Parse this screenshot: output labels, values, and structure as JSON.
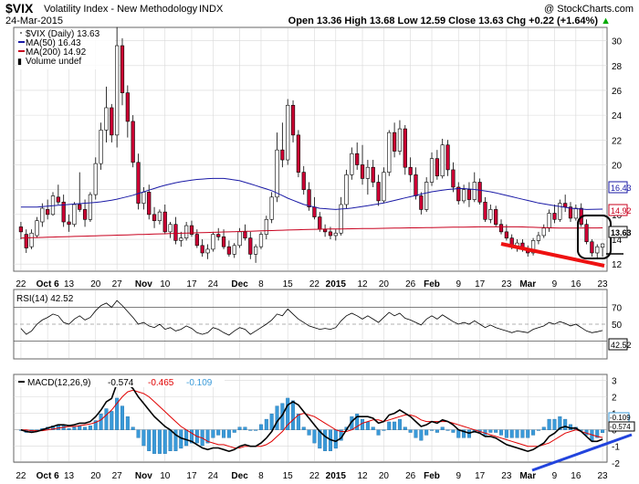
{
  "header": {
    "symbol": "$VIX",
    "description": "Volatility Index - New Methodology",
    "exchange": "INDX",
    "watermark": "@ StockCharts.com",
    "date": "24-Mar-2015",
    "ohlc": "Open 13.36  High 13.68  Low 12.59  Close 13.63  Chg +0.22 (+1.64%)",
    "chg_symbol": "▲"
  },
  "legend": {
    "price": "$VIX (Daily) 13.63",
    "ma50": "MA(50) 16.43",
    "ma200": "MA(200) 14.92",
    "volume": "Volume undef"
  },
  "rsi_title": "RSI(14) 42.52",
  "macd_title": {
    "label": "MACD(12,26,9)",
    "v1": "-0.574",
    "v2": "-0.465",
    "v3": "-0.109"
  },
  "colors": {
    "up": "#ffffff",
    "down": "#cc0033",
    "ma50": "#1a1aa6",
    "ma200": "#c8001e",
    "macd": "#000000",
    "signal": "#e00000",
    "hist": "#3a9ad9",
    "trend_red": "#ee1111",
    "trend_blue": "#2244dd"
  },
  "chart_data": {
    "type": "candlestick",
    "price_axis": {
      "min": 11.5,
      "max": 31,
      "ticks": [
        12,
        14,
        16,
        18,
        20,
        22,
        24,
        26,
        28,
        30
      ]
    },
    "month_labels": [
      "22",
      "Oct 6",
      "13",
      "20",
      "27",
      "Nov",
      "10",
      "17",
      "24",
      "Dec",
      "8",
      "15",
      "22",
      "2015",
      "12",
      "20",
      "26",
      "Feb",
      "9",
      "17",
      "23",
      "Mar",
      "9",
      "16",
      "23"
    ],
    "candles": [
      {
        "o": 15.0,
        "h": 15.4,
        "l": 14.0,
        "c": 14.6
      },
      {
        "o": 14.4,
        "h": 14.8,
        "l": 12.9,
        "c": 13.3
      },
      {
        "o": 13.4,
        "h": 14.8,
        "l": 13.2,
        "c": 14.5
      },
      {
        "o": 14.3,
        "h": 15.8,
        "l": 14.1,
        "c": 15.5
      },
      {
        "o": 15.4,
        "h": 16.9,
        "l": 15.0,
        "c": 16.5
      },
      {
        "o": 16.4,
        "h": 17.2,
        "l": 15.6,
        "c": 16.0
      },
      {
        "o": 16.0,
        "h": 17.8,
        "l": 15.9,
        "c": 17.5
      },
      {
        "o": 17.4,
        "h": 18.4,
        "l": 16.8,
        "c": 17.0
      },
      {
        "o": 17.0,
        "h": 17.6,
        "l": 15.0,
        "c": 15.4
      },
      {
        "o": 15.4,
        "h": 16.0,
        "l": 14.6,
        "c": 15.2
      },
      {
        "o": 15.2,
        "h": 17.0,
        "l": 15.0,
        "c": 16.8
      },
      {
        "o": 16.8,
        "h": 19.4,
        "l": 16.2,
        "c": 16.4
      },
      {
        "o": 16.4,
        "h": 17.2,
        "l": 15.0,
        "c": 15.6
      },
      {
        "o": 15.6,
        "h": 17.8,
        "l": 15.4,
        "c": 17.6
      },
      {
        "o": 17.6,
        "h": 20.6,
        "l": 17.2,
        "c": 20.1
      },
      {
        "o": 20.1,
        "h": 23.4,
        "l": 19.6,
        "c": 22.8
      },
      {
        "o": 22.8,
        "h": 26.3,
        "l": 21.8,
        "c": 24.6
      },
      {
        "o": 24.6,
        "h": 24.9,
        "l": 21.8,
        "c": 22.4
      },
      {
        "o": 22.4,
        "h": 31.1,
        "l": 21.4,
        "c": 29.6
      },
      {
        "o": 29.6,
        "h": 30.2,
        "l": 24.8,
        "c": 25.8
      },
      {
        "o": 25.8,
        "h": 26.4,
        "l": 22.2,
        "c": 23.5
      },
      {
        "o": 23.5,
        "h": 24.0,
        "l": 19.8,
        "c": 20.2
      },
      {
        "o": 20.2,
        "h": 20.9,
        "l": 16.4,
        "c": 16.9
      },
      {
        "o": 16.9,
        "h": 18.2,
        "l": 16.4,
        "c": 17.8
      },
      {
        "o": 17.8,
        "h": 18.4,
        "l": 15.6,
        "c": 16.0
      },
      {
        "o": 16.0,
        "h": 16.6,
        "l": 14.9,
        "c": 15.5
      },
      {
        "o": 15.5,
        "h": 16.4,
        "l": 15.2,
        "c": 16.2
      },
      {
        "o": 16.2,
        "h": 16.8,
        "l": 14.4,
        "c": 14.6
      },
      {
        "o": 14.6,
        "h": 15.4,
        "l": 14.1,
        "c": 15.2
      },
      {
        "o": 15.2,
        "h": 15.8,
        "l": 13.6,
        "c": 13.9
      },
      {
        "o": 13.9,
        "h": 14.6,
        "l": 13.4,
        "c": 14.1
      },
      {
        "o": 14.1,
        "h": 15.4,
        "l": 13.9,
        "c": 15.1
      },
      {
        "o": 15.1,
        "h": 15.5,
        "l": 14.2,
        "c": 14.4
      },
      {
        "o": 14.4,
        "h": 14.8,
        "l": 13.3,
        "c": 13.5
      },
      {
        "o": 13.5,
        "h": 14.0,
        "l": 12.6,
        "c": 12.9
      },
      {
        "o": 12.9,
        "h": 13.6,
        "l": 12.4,
        "c": 13.2
      },
      {
        "o": 13.2,
        "h": 14.6,
        "l": 13.0,
        "c": 14.4
      },
      {
        "o": 14.4,
        "h": 14.9,
        "l": 13.9,
        "c": 14.2
      },
      {
        "o": 14.2,
        "h": 14.8,
        "l": 13.2,
        "c": 13.4
      },
      {
        "o": 13.4,
        "h": 13.9,
        "l": 12.6,
        "c": 12.8
      },
      {
        "o": 12.8,
        "h": 13.7,
        "l": 12.5,
        "c": 13.5
      },
      {
        "o": 13.5,
        "h": 14.9,
        "l": 13.3,
        "c": 14.6
      },
      {
        "o": 14.6,
        "h": 15.2,
        "l": 13.9,
        "c": 14.1
      },
      {
        "o": 14.1,
        "h": 14.6,
        "l": 12.4,
        "c": 12.8
      },
      {
        "o": 12.8,
        "h": 13.6,
        "l": 12.1,
        "c": 13.4
      },
      {
        "o": 13.4,
        "h": 14.6,
        "l": 13.2,
        "c": 14.4
      },
      {
        "o": 14.4,
        "h": 15.9,
        "l": 14.0,
        "c": 15.6
      },
      {
        "o": 15.6,
        "h": 17.8,
        "l": 15.3,
        "c": 17.4
      },
      {
        "o": 17.4,
        "h": 22.6,
        "l": 17.0,
        "c": 21.2
      },
      {
        "o": 21.2,
        "h": 23.4,
        "l": 19.8,
        "c": 20.4
      },
      {
        "o": 20.4,
        "h": 25.3,
        "l": 20.0,
        "c": 24.8
      },
      {
        "o": 24.8,
        "h": 25.2,
        "l": 21.8,
        "c": 22.4
      },
      {
        "o": 22.4,
        "h": 22.8,
        "l": 19.0,
        "c": 19.4
      },
      {
        "o": 19.4,
        "h": 19.9,
        "l": 17.6,
        "c": 18.0
      },
      {
        "o": 18.0,
        "h": 18.6,
        "l": 16.3,
        "c": 16.6
      },
      {
        "o": 16.6,
        "h": 17.4,
        "l": 15.6,
        "c": 15.8
      },
      {
        "o": 15.8,
        "h": 16.2,
        "l": 14.6,
        "c": 14.8
      },
      {
        "o": 14.8,
        "h": 15.2,
        "l": 14.2,
        "c": 14.6
      },
      {
        "o": 14.6,
        "h": 15.0,
        "l": 14.0,
        "c": 14.3
      },
      {
        "o": 14.3,
        "h": 14.8,
        "l": 13.9,
        "c": 14.5
      },
      {
        "o": 14.5,
        "h": 17.4,
        "l": 14.3,
        "c": 16.8
      },
      {
        "o": 16.8,
        "h": 19.6,
        "l": 16.5,
        "c": 19.2
      },
      {
        "o": 19.2,
        "h": 21.4,
        "l": 18.8,
        "c": 20.9
      },
      {
        "o": 20.9,
        "h": 21.8,
        "l": 19.6,
        "c": 20.0
      },
      {
        "o": 20.0,
        "h": 21.6,
        "l": 18.4,
        "c": 18.9
      },
      {
        "o": 18.9,
        "h": 20.4,
        "l": 17.6,
        "c": 19.8
      },
      {
        "o": 19.8,
        "h": 20.4,
        "l": 18.2,
        "c": 18.6
      },
      {
        "o": 18.6,
        "h": 19.2,
        "l": 16.7,
        "c": 17.1
      },
      {
        "o": 17.1,
        "h": 19.8,
        "l": 16.9,
        "c": 19.4
      },
      {
        "o": 19.4,
        "h": 22.8,
        "l": 19.1,
        "c": 22.6
      },
      {
        "o": 22.6,
        "h": 23.4,
        "l": 20.6,
        "c": 21.1
      },
      {
        "o": 21.1,
        "h": 23.6,
        "l": 20.8,
        "c": 22.9
      },
      {
        "o": 22.9,
        "h": 23.2,
        "l": 19.2,
        "c": 19.8
      },
      {
        "o": 19.8,
        "h": 20.6,
        "l": 18.6,
        "c": 19.2
      },
      {
        "o": 19.2,
        "h": 19.8,
        "l": 17.2,
        "c": 17.5
      },
      {
        "o": 17.5,
        "h": 17.8,
        "l": 16.0,
        "c": 16.4
      },
      {
        "o": 16.4,
        "h": 19.0,
        "l": 16.2,
        "c": 18.6
      },
      {
        "o": 18.6,
        "h": 21.0,
        "l": 18.3,
        "c": 20.5
      },
      {
        "o": 20.5,
        "h": 21.2,
        "l": 18.8,
        "c": 19.1
      },
      {
        "o": 19.1,
        "h": 22.1,
        "l": 18.9,
        "c": 21.6
      },
      {
        "o": 21.6,
        "h": 22.0,
        "l": 19.1,
        "c": 19.6
      },
      {
        "o": 19.6,
        "h": 20.2,
        "l": 17.8,
        "c": 18.2
      },
      {
        "o": 18.2,
        "h": 18.6,
        "l": 16.8,
        "c": 17.1
      },
      {
        "o": 17.1,
        "h": 18.4,
        "l": 16.9,
        "c": 18.0
      },
      {
        "o": 18.0,
        "h": 18.6,
        "l": 16.6,
        "c": 17.2
      },
      {
        "o": 17.2,
        "h": 19.4,
        "l": 17.0,
        "c": 18.6
      },
      {
        "o": 18.6,
        "h": 18.9,
        "l": 16.8,
        "c": 17.0
      },
      {
        "o": 17.0,
        "h": 17.4,
        "l": 15.4,
        "c": 15.6
      },
      {
        "o": 15.6,
        "h": 16.8,
        "l": 15.3,
        "c": 16.4
      },
      {
        "o": 16.4,
        "h": 16.7,
        "l": 15.0,
        "c": 15.2
      },
      {
        "o": 15.2,
        "h": 15.6,
        "l": 14.4,
        "c": 14.6
      },
      {
        "o": 14.6,
        "h": 15.2,
        "l": 13.9,
        "c": 14.1
      },
      {
        "o": 14.1,
        "h": 14.4,
        "l": 13.2,
        "c": 13.4
      },
      {
        "o": 13.4,
        "h": 14.0,
        "l": 13.0,
        "c": 13.7
      },
      {
        "o": 13.7,
        "h": 14.0,
        "l": 13.0,
        "c": 13.2
      },
      {
        "o": 13.2,
        "h": 13.5,
        "l": 12.6,
        "c": 12.9
      },
      {
        "o": 12.9,
        "h": 14.1,
        "l": 12.7,
        "c": 13.9
      },
      {
        "o": 13.9,
        "h": 14.6,
        "l": 13.6,
        "c": 14.3
      },
      {
        "o": 14.3,
        "h": 15.2,
        "l": 14.1,
        "c": 14.9
      },
      {
        "o": 14.9,
        "h": 16.4,
        "l": 14.6,
        "c": 16.1
      },
      {
        "o": 16.1,
        "h": 16.8,
        "l": 15.3,
        "c": 15.6
      },
      {
        "o": 15.6,
        "h": 17.2,
        "l": 15.4,
        "c": 16.9
      },
      {
        "o": 16.9,
        "h": 17.6,
        "l": 16.2,
        "c": 16.6
      },
      {
        "o": 16.6,
        "h": 17.0,
        "l": 15.4,
        "c": 15.7
      },
      {
        "o": 15.7,
        "h": 16.8,
        "l": 15.5,
        "c": 16.5
      },
      {
        "o": 16.5,
        "h": 16.9,
        "l": 15.0,
        "c": 15.2
      },
      {
        "o": 15.2,
        "h": 15.6,
        "l": 13.6,
        "c": 13.8
      },
      {
        "o": 13.8,
        "h": 14.0,
        "l": 12.6,
        "c": 12.9
      },
      {
        "o": 12.9,
        "h": 13.6,
        "l": 12.5,
        "c": 13.4
      },
      {
        "o": 13.36,
        "h": 13.68,
        "l": 12.59,
        "c": 13.63
      }
    ],
    "ma50": [
      16.6,
      16.6,
      16.7,
      16.8,
      16.9,
      17.0,
      17.2,
      17.5,
      17.9,
      18.3,
      18.6,
      18.8,
      18.9,
      18.9,
      18.7,
      18.3,
      17.9,
      17.3,
      16.8,
      16.5,
      16.4,
      16.5,
      16.7,
      16.9,
      17.2,
      17.5,
      17.8,
      18.0,
      18.1,
      18.0,
      17.8,
      17.5,
      17.2,
      16.9,
      16.7,
      16.5,
      16.4,
      16.43
    ],
    "ma200": [
      14.1,
      14.2,
      14.3,
      14.4,
      14.5,
      14.6,
      14.7,
      14.8,
      14.85,
      14.9,
      14.95,
      15.0,
      15.0,
      14.9,
      14.92
    ],
    "axis_marks": {
      "last": "13.63",
      "ma50": "16.43",
      "ma200": "14.92"
    },
    "rsi": {
      "ticks": [
        30,
        50,
        70
      ],
      "last": "42.52",
      "values": [
        45,
        38,
        42,
        50,
        55,
        58,
        62,
        60,
        52,
        50,
        56,
        60,
        55,
        58,
        66,
        72,
        75,
        70,
        78,
        72,
        65,
        58,
        50,
        52,
        48,
        46,
        50,
        44,
        46,
        42,
        44,
        48,
        45,
        40,
        38,
        40,
        46,
        44,
        40,
        37,
        42,
        46,
        44,
        38,
        42,
        46,
        50,
        55,
        62,
        60,
        68,
        62,
        56,
        52,
        48,
        46,
        44,
        45,
        44,
        46,
        54,
        60,
        63,
        60,
        56,
        60,
        56,
        52,
        58,
        64,
        60,
        63,
        57,
        55,
        52,
        49,
        56,
        60,
        56,
        61,
        57,
        53,
        50,
        52,
        50,
        54,
        50,
        46,
        49,
        46,
        44,
        42,
        40,
        42,
        41,
        40,
        44,
        46,
        48,
        52,
        50,
        53,
        51,
        48,
        50,
        46,
        42,
        40,
        41,
        42.52
      ]
    },
    "macd": {
      "ticks": [
        -2,
        -1,
        0,
        1,
        2,
        3
      ],
      "macd_last": "-0.574",
      "hist_last": "-0.109",
      "macd": [
        0,
        -0.1,
        -0.15,
        -0.1,
        0,
        0.1,
        0.2,
        0.3,
        0.3,
        0.25,
        0.3,
        0.4,
        0.4,
        0.5,
        0.8,
        1.2,
        1.7,
        1.9,
        2.8,
        2.9,
        2.8,
        2.5,
        2.0,
        1.6,
        1.2,
        0.8,
        0.5,
        0.2,
        0,
        -0.3,
        -0.5,
        -0.6,
        -0.7,
        -0.9,
        -1.1,
        -1.2,
        -1.1,
        -1.1,
        -1.2,
        -1.3,
        -1.2,
        -1.0,
        -0.9,
        -1.0,
        -1.0,
        -0.8,
        -0.5,
        -0.1,
        0.5,
        0.9,
        1.5,
        1.7,
        1.5,
        1.1,
        0.7,
        0.3,
        -0.1,
        -0.4,
        -0.6,
        -0.7,
        -0.5,
        0,
        0.5,
        0.8,
        0.8,
        0.8,
        0.7,
        0.4,
        0.5,
        0.9,
        1.0,
        1.2,
        1.0,
        0.8,
        0.5,
        0.2,
        0.3,
        0.5,
        0.4,
        0.6,
        0.5,
        0.3,
        0.0,
        -0.1,
        -0.2,
        -0.1,
        -0.2,
        -0.4,
        -0.4,
        -0.5,
        -0.7,
        -0.9,
        -1.0,
        -1.1,
        -1.2,
        -1.3,
        -1.2,
        -1.0,
        -0.8,
        -0.4,
        -0.2,
        0.1,
        0.2,
        0.1,
        0.1,
        -0.1,
        -0.4,
        -0.7,
        -0.7,
        -0.574
      ],
      "signal": [
        0,
        0,
        -0.05,
        -0.05,
        -0.05,
        0,
        0.05,
        0.1,
        0.15,
        0.2,
        0.2,
        0.25,
        0.3,
        0.35,
        0.45,
        0.6,
        0.9,
        1.2,
        1.6,
        2.0,
        2.3,
        2.4,
        2.3,
        2.2,
        2.0,
        1.7,
        1.4,
        1.1,
        0.8,
        0.5,
        0.2,
        0,
        -0.2,
        -0.4,
        -0.5,
        -0.7,
        -0.8,
        -0.9,
        -0.9,
        -1.0,
        -1.1,
        -1.1,
        -1.0,
        -1.0,
        -1.0,
        -1.0,
        -0.9,
        -0.7,
        -0.4,
        -0.1,
        0.3,
        0.6,
        0.9,
        1.0,
        0.9,
        0.8,
        0.6,
        0.4,
        0.2,
        0,
        -0.1,
        -0.1,
        0,
        0.2,
        0.4,
        0.5,
        0.6,
        0.6,
        0.5,
        0.6,
        0.7,
        0.8,
        0.9,
        0.9,
        0.8,
        0.6,
        0.5,
        0.5,
        0.5,
        0.5,
        0.5,
        0.4,
        0.3,
        0.2,
        0.1,
        0,
        -0.1,
        -0.2,
        -0.3,
        -0.4,
        -0.5,
        -0.6,
        -0.7,
        -0.8,
        -0.9,
        -1.0,
        -1.0,
        -1.0,
        -0.9,
        -0.8,
        -0.6,
        -0.4,
        -0.2,
        -0.1,
        0,
        -0.1,
        -0.2,
        -0.3,
        -0.4,
        -0.465
      ]
    }
  }
}
